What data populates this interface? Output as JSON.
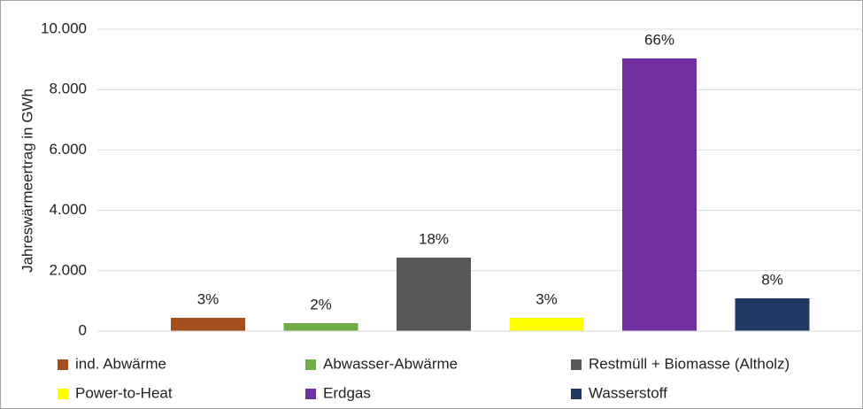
{
  "chart_data": {
    "type": "bar",
    "y_axis_label": "Jahreswärmeertrag in GWh",
    "categories": [
      "ind. Abwärme",
      "Abwasser-Abwärme",
      "Restmüll + Biomasse (Altholz)",
      "Power-to-Heat",
      "Erdgas",
      "Wasserstoff"
    ],
    "values": [
      440,
      264,
      2434,
      440,
      9032,
      1085
    ],
    "value_labels": [
      "3%",
      "2%",
      "18%",
      "3%",
      "66%",
      "8%"
    ],
    "colors": [
      "#a5501c",
      "#70ad47",
      "#595959",
      "#ffff00",
      "#7030a0",
      "#203864"
    ],
    "ylim": [
      0,
      10000
    ],
    "yticks": [
      0,
      {
        "value": 2000,
        "label": "2.000"
      },
      {
        "value": 4000,
        "label": "4.000"
      },
      {
        "value": 6000,
        "label": "6.000"
      },
      {
        "value": 8000,
        "label": "8.000"
      },
      {
        "value": 10000,
        "label": "10.000"
      }
    ],
    "grid": true
  }
}
